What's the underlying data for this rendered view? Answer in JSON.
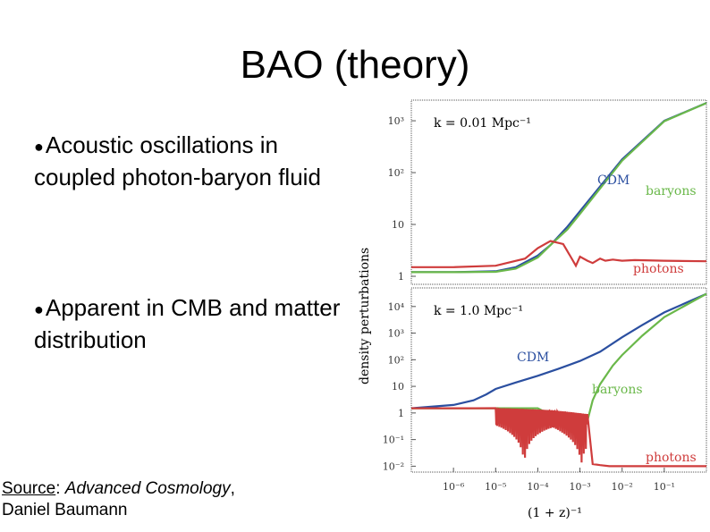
{
  "slide": {
    "title": "BAO (theory)",
    "bullets": [
      "Acoustic oscillations in coupled photon-baryon fluid",
      "Apparent in CMB and matter distribution"
    ],
    "bullet_symbol": "●",
    "source_label": "Source",
    "source_colon": ": ",
    "source_book": "Advanced Cosmology",
    "source_comma": ",",
    "source_author": "Daniel Baumann"
  },
  "chart_data": [
    {
      "type": "line",
      "panel": "top",
      "annotation": "k = 0.01 Mpc⁻¹",
      "ylabel": "density perturbations",
      "xlabel": "(1 + z)⁻¹",
      "x_scale": "log",
      "y_scale": "log",
      "xlim": [
        1e-07,
        1
      ],
      "ylim": [
        0.7,
        2500
      ],
      "yticks": [
        {
          "v": 1000,
          "label": "10³"
        },
        {
          "v": 100,
          "label": "10²"
        },
        {
          "v": 10,
          "label": "10"
        },
        {
          "v": 1,
          "label": "1"
        }
      ],
      "colors": {
        "CDM": "#2b4fa0",
        "baryons": "#6ab84a",
        "photons": "#cf3c3c"
      },
      "series": [
        {
          "name": "CDM",
          "x": [
            1e-07,
            1e-06,
            1e-05,
            3e-05,
            0.0001,
            0.0002,
            0.0005,
            0.001,
            0.01,
            0.1,
            1
          ],
          "y": [
            1.2,
            1.2,
            1.25,
            1.5,
            2.5,
            4,
            9,
            18,
            180,
            1000,
            2200
          ]
        },
        {
          "name": "baryons",
          "x": [
            1e-07,
            1e-06,
            1e-05,
            3e-05,
            0.0001,
            0.0002,
            0.0005,
            0.001,
            0.01,
            0.1,
            1
          ],
          "y": [
            1.2,
            1.2,
            1.22,
            1.4,
            2.3,
            4,
            8,
            16,
            170,
            980,
            2200
          ]
        },
        {
          "name": "photons",
          "x": [
            1e-07,
            1e-06,
            1e-05,
            5e-05,
            0.0001,
            0.0002,
            0.0004,
            0.0006,
            0.0008,
            0.001,
            0.0015,
            0.002,
            0.003,
            0.004,
            0.006,
            0.01,
            0.02,
            0.1,
            1
          ],
          "y": [
            1.5,
            1.5,
            1.6,
            2.2,
            3.5,
            4.8,
            4.2,
            2.4,
            1.6,
            2.4,
            2.0,
            1.8,
            2.2,
            2.0,
            2.1,
            2.0,
            2.05,
            2.0,
            1.95
          ]
        }
      ],
      "labels": [
        "CDM",
        "baryons",
        "photons"
      ]
    },
    {
      "type": "line",
      "panel": "bottom",
      "annotation": "k = 1.0 Mpc⁻¹",
      "xlabel": "(1 + z)⁻¹",
      "x_scale": "log",
      "y_scale": "log",
      "xlim": [
        1e-07,
        1
      ],
      "ylim": [
        0.006,
        50000
      ],
      "xticks": [
        {
          "v": 1e-06,
          "label": "10⁻⁶"
        },
        {
          "v": 1e-05,
          "label": "10⁻⁵"
        },
        {
          "v": 0.0001,
          "label": "10⁻⁴"
        },
        {
          "v": 0.001,
          "label": "10⁻³"
        },
        {
          "v": 0.01,
          "label": "10⁻²"
        },
        {
          "v": 0.1,
          "label": "10⁻¹"
        }
      ],
      "yticks": [
        {
          "v": 10000,
          "label": "10⁴"
        },
        {
          "v": 1000,
          "label": "10³"
        },
        {
          "v": 100,
          "label": "10²"
        },
        {
          "v": 10,
          "label": "10"
        },
        {
          "v": 1,
          "label": "1"
        },
        {
          "v": 0.1,
          "label": "10⁻¹"
        },
        {
          "v": 0.01,
          "label": "10⁻²"
        }
      ],
      "colors": {
        "CDM": "#2b4fa0",
        "baryons": "#6ab84a",
        "photons": "#cf3c3c"
      },
      "series": [
        {
          "name": "CDM",
          "x": [
            1e-07,
            1e-06,
            3e-06,
            6e-06,
            1e-05,
            3e-05,
            0.0001,
            0.0003,
            0.001,
            0.003,
            0.01,
            0.03,
            0.1,
            1
          ],
          "y": [
            1.5,
            2,
            3,
            5,
            8,
            14,
            25,
            45,
            90,
            200,
            700,
            2000,
            6000,
            30000
          ]
        },
        {
          "name": "baryons",
          "x": [
            1e-07,
            1e-06,
            3e-06,
            1e-05,
            0.0001,
            0.0005,
            0.001,
            0.0015,
            0.002,
            0.003,
            0.006,
            0.01,
            0.03,
            0.1,
            1
          ],
          "y": [
            1.5,
            1.5,
            1.5,
            1.5,
            1.5,
            0.4,
            0.1,
            0.5,
            3,
            12,
            60,
            150,
            800,
            4000,
            30000
          ]
        },
        {
          "name": "photons",
          "x": [
            1e-07,
            1e-06,
            3e-06,
            1e-05,
            0.0001,
            0.0005,
            0.001,
            0.0015,
            0.002,
            0.003,
            0.005,
            0.01,
            0.03,
            0.1,
            1
          ],
          "y": [
            1.5,
            1.5,
            1.5,
            1.5,
            1.5,
            1.5,
            1.5,
            0.05,
            0.012,
            0.011,
            0.01,
            0.01,
            0.01,
            0.01,
            0.01
          ]
        }
      ],
      "labels": [
        "CDM",
        "baryons",
        "photons"
      ]
    }
  ]
}
